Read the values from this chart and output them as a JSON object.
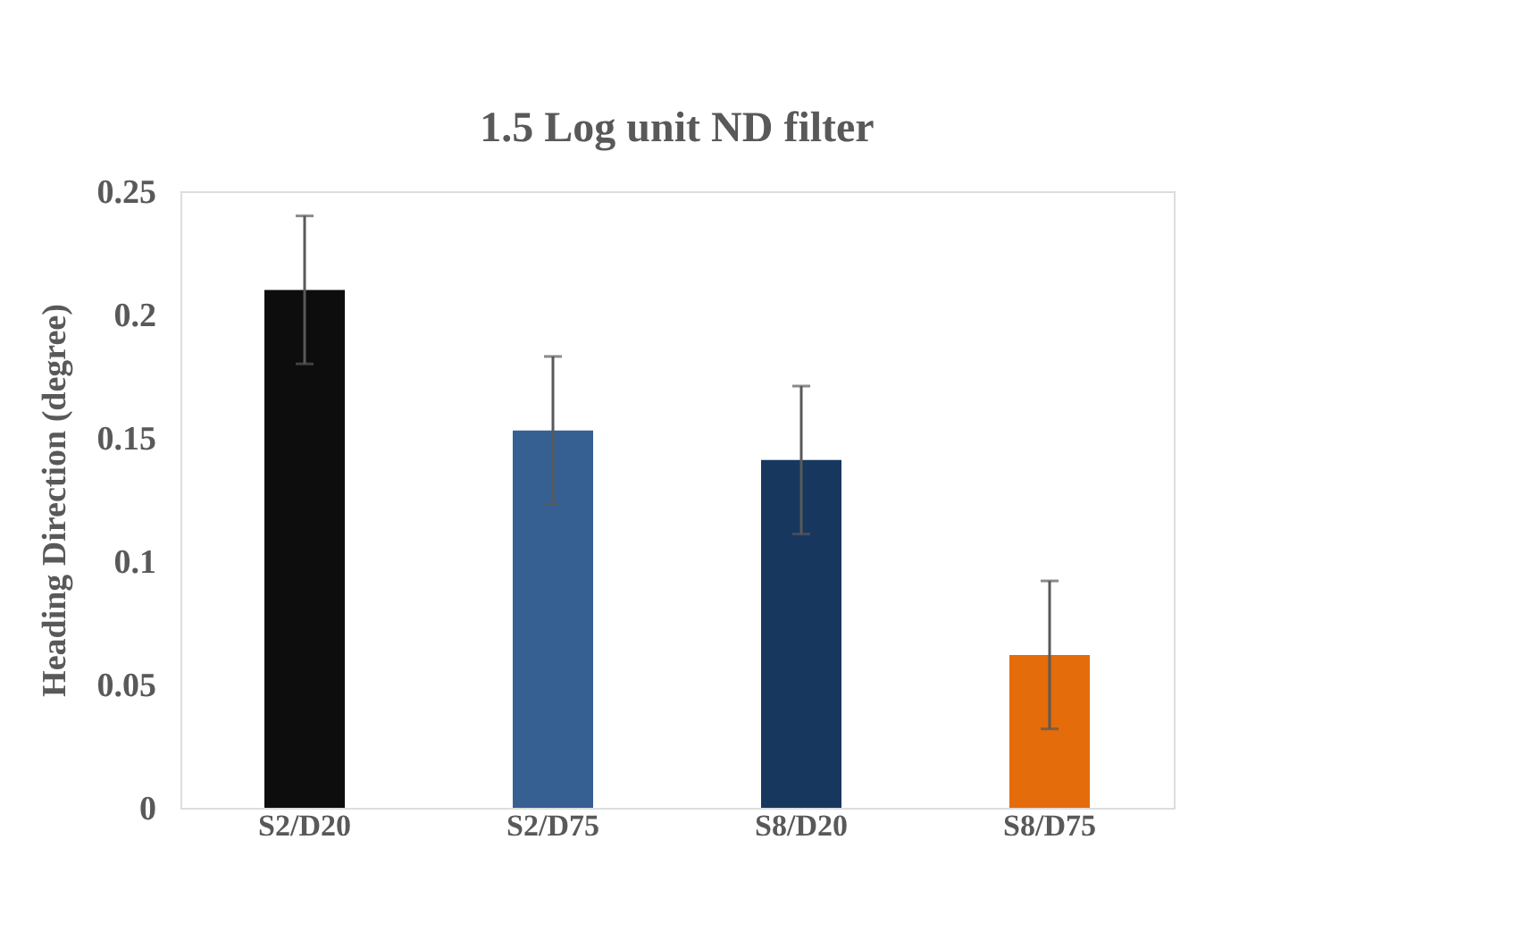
{
  "chart_data": {
    "type": "bar",
    "title": "1.5 Log unit ND filter",
    "ylabel": "Heading Direction (degree)",
    "categories": [
      "S2/D20",
      "S2/D75",
      "S8/D20",
      "S8/D75"
    ],
    "values": [
      0.21,
      0.153,
      0.141,
      0.062
    ],
    "errors": [
      0.03,
      0.03,
      0.03,
      0.03
    ],
    "colors": [
      "#0d0d0d",
      "#376092",
      "#17375e",
      "#e46c0a"
    ],
    "ylim": [
      0,
      0.25
    ],
    "yticks": [
      0,
      0.05,
      0.1,
      0.15,
      0.2,
      0.25
    ],
    "grid": false
  }
}
